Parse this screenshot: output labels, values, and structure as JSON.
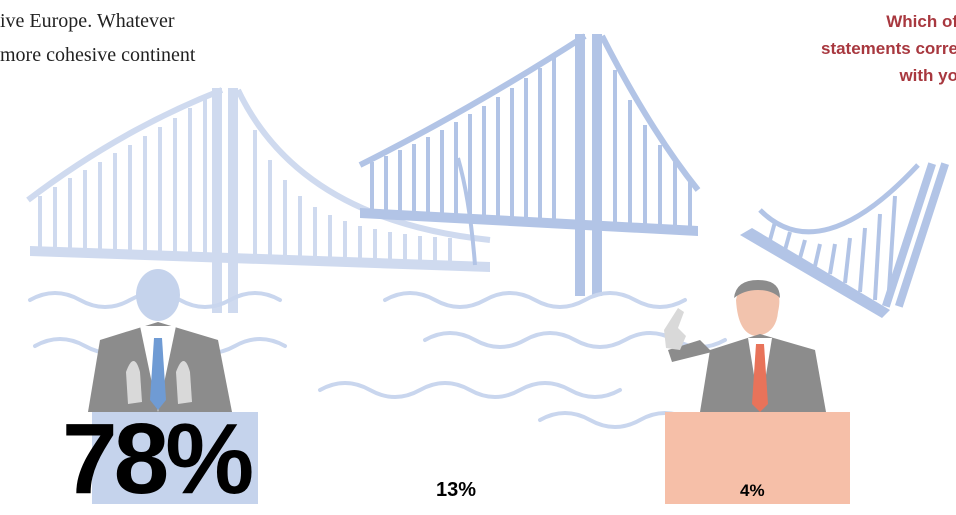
{
  "intro": {
    "line1": "ive Europe. Whatever",
    "line2": "more cohesive continent"
  },
  "question": {
    "line1": "Which of",
    "line2": "statements corre",
    "line3": "with yo"
  },
  "results": {
    "left": "78%",
    "middle": "13%",
    "right": "4%"
  },
  "colors": {
    "question_text": "#a8383f",
    "bridge_light": "#cfdaef",
    "bridge_mid": "#b2c4e6",
    "water": "#c9d6ee",
    "left_figure": "#c5d3ec",
    "left_podium": "#c5d3ec",
    "right_podium": "#f6bfa8",
    "right_tie": "#e8735a",
    "suit_grey": "#8c8c8c"
  }
}
